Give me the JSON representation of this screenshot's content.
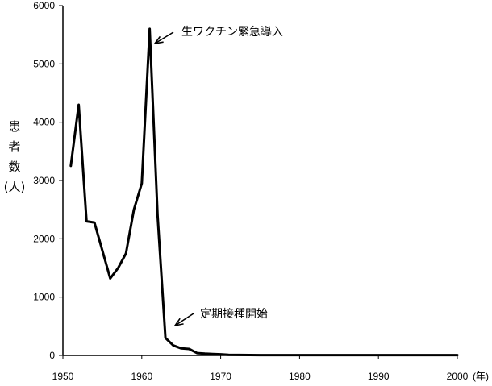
{
  "chart_data": {
    "type": "line",
    "title": "",
    "xlabel": "(年)",
    "ylabel_lines": [
      "患",
      "者",
      "数",
      "(人)"
    ],
    "xlim": [
      1950,
      2000
    ],
    "ylim": [
      0,
      6000
    ],
    "xticks": [
      "1950",
      "1960",
      "1970",
      "1980",
      "1990",
      "2000"
    ],
    "yticks": [
      "0",
      "1000",
      "2000",
      "3000",
      "4000",
      "5000",
      "6000"
    ],
    "grid": false,
    "legend": "none",
    "series": [
      {
        "x": [
          1951,
          1952,
          1953,
          1954,
          1955,
          1956,
          1957,
          1958,
          1959,
          1960,
          1961,
          1962,
          1963,
          1964,
          1965,
          1966,
          1967,
          1968,
          1969,
          1970,
          1971,
          1975,
          1980,
          1990,
          2000
        ],
        "y": [
          3250,
          4300,
          2300,
          2280,
          1800,
          1320,
          1500,
          1750,
          2500,
          2950,
          5600,
          2400,
          300,
          170,
          120,
          110,
          40,
          30,
          25,
          20,
          10,
          5,
          5,
          5,
          5
        ],
        "color": "#000000"
      }
    ],
    "annotations": [
      {
        "text": "生ワクチン緊急導入",
        "x": 1961,
        "y": 5600
      },
      {
        "text": "定期接種開始",
        "x": 1964,
        "y": 170
      }
    ]
  }
}
